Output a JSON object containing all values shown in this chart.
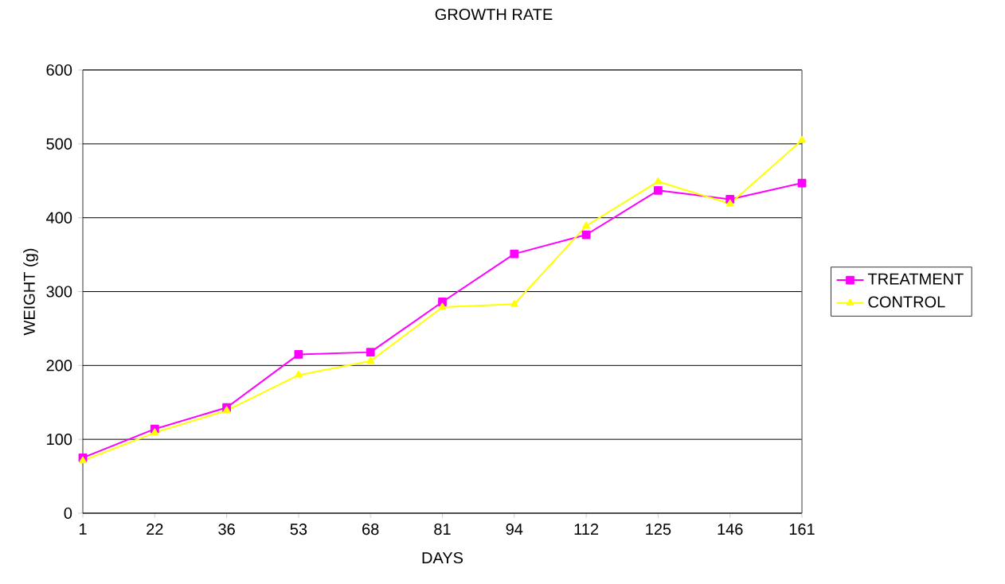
{
  "chart_data": {
    "type": "line",
    "title": "GROWTH  RATE",
    "xlabel": "DAYS",
    "ylabel": "WEIGHT (g)",
    "categories": [
      "1",
      "22",
      "36",
      "53",
      "68",
      "81",
      "94",
      "112",
      "125",
      "146",
      "161"
    ],
    "series": [
      {
        "name": "TREATMENT",
        "color": "#ff00ff",
        "marker": "square",
        "values": [
          75,
          114,
          143,
          215,
          218,
          286,
          351,
          377,
          437,
          425,
          447
        ]
      },
      {
        "name": "CONTROL",
        "color": "#ffff00",
        "marker": "triangle",
        "values": [
          71,
          109,
          139,
          187,
          206,
          279,
          283,
          389,
          449,
          419,
          505
        ]
      }
    ],
    "ylim": [
      0,
      600
    ],
    "yticks": [
      0,
      100,
      200,
      300,
      400,
      500,
      600
    ],
    "grid": "y",
    "legend": "right"
  }
}
